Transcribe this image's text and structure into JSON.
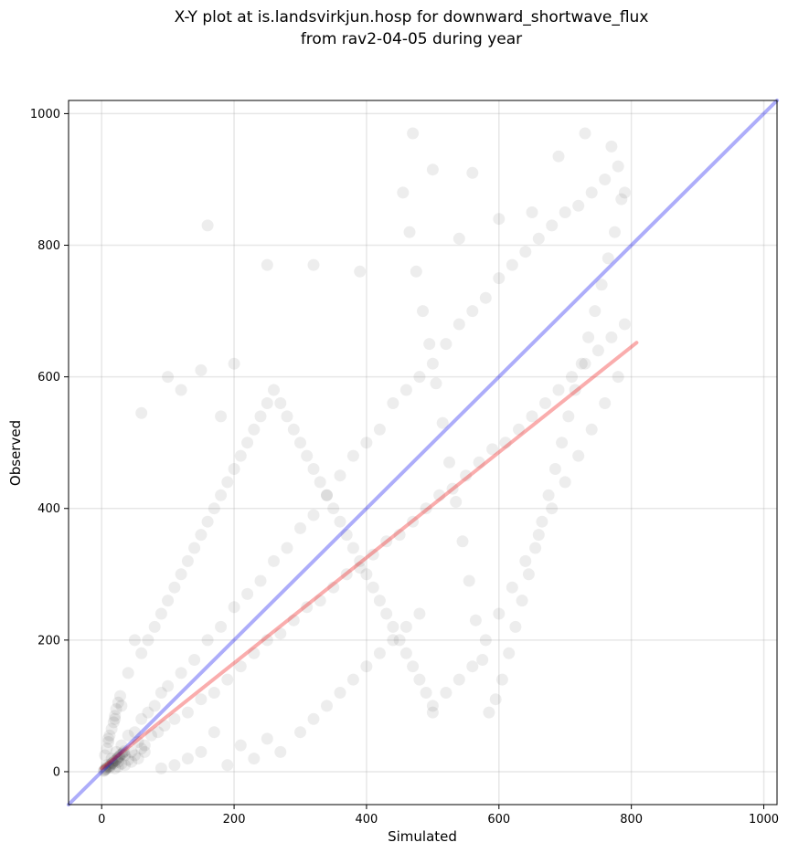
{
  "chart_data": {
    "type": "scatter",
    "title": "X-Y plot at is.landsvirkjun.hosp for downward_shortwave_flux",
    "subtitle": "from rav2-04-05 during year",
    "xlabel": "Simulated",
    "ylabel": "Observed",
    "xlim": [
      -50,
      1020
    ],
    "ylim": [
      -50,
      1020
    ],
    "x_ticks": [
      0,
      200,
      400,
      600,
      800,
      1000
    ],
    "y_ticks": [
      0,
      200,
      400,
      600,
      800,
      1000
    ],
    "grid": true,
    "legend": "none",
    "series": [
      {
        "kind": "points",
        "color": "#000000",
        "opacity": 0.07,
        "points": [
          [
            5,
            3
          ],
          [
            8,
            10
          ],
          [
            12,
            6
          ],
          [
            15,
            20
          ],
          [
            18,
            12
          ],
          [
            22,
            30
          ],
          [
            25,
            15
          ],
          [
            30,
            40
          ],
          [
            35,
            25
          ],
          [
            40,
            55
          ],
          [
            45,
            30
          ],
          [
            50,
            60
          ],
          [
            55,
            45
          ],
          [
            60,
            80
          ],
          [
            65,
            40
          ],
          [
            70,
            90
          ],
          [
            75,
            55
          ],
          [
            80,
            100
          ],
          [
            85,
            60
          ],
          [
            90,
            120
          ],
          [
            95,
            70
          ],
          [
            100,
            130
          ],
          [
            110,
            80
          ],
          [
            120,
            150
          ],
          [
            130,
            90
          ],
          [
            140,
            170
          ],
          [
            150,
            110
          ],
          [
            160,
            200
          ],
          [
            170,
            120
          ],
          [
            180,
            220
          ],
          [
            190,
            140
          ],
          [
            200,
            250
          ],
          [
            210,
            160
          ],
          [
            220,
            270
          ],
          [
            230,
            180
          ],
          [
            240,
            290
          ],
          [
            250,
            200
          ],
          [
            260,
            320
          ],
          [
            270,
            210
          ],
          [
            280,
            340
          ],
          [
            290,
            230
          ],
          [
            300,
            370
          ],
          [
            310,
            250
          ],
          [
            320,
            390
          ],
          [
            330,
            260
          ],
          [
            340,
            420
          ],
          [
            350,
            280
          ],
          [
            360,
            450
          ],
          [
            370,
            300
          ],
          [
            380,
            480
          ],
          [
            390,
            310
          ],
          [
            400,
            500
          ],
          [
            410,
            330
          ],
          [
            420,
            520
          ],
          [
            430,
            350
          ],
          [
            440,
            560
          ],
          [
            450,
            360
          ],
          [
            460,
            580
          ],
          [
            470,
            380
          ],
          [
            480,
            600
          ],
          [
            490,
            400
          ],
          [
            500,
            620
          ],
          [
            510,
            420
          ],
          [
            520,
            650
          ],
          [
            530,
            430
          ],
          [
            540,
            680
          ],
          [
            550,
            450
          ],
          [
            560,
            700
          ],
          [
            570,
            470
          ],
          [
            580,
            720
          ],
          [
            590,
            490
          ],
          [
            600,
            750
          ],
          [
            610,
            500
          ],
          [
            620,
            770
          ],
          [
            630,
            520
          ],
          [
            640,
            790
          ],
          [
            650,
            540
          ],
          [
            660,
            810
          ],
          [
            670,
            560
          ],
          [
            680,
            830
          ],
          [
            690,
            580
          ],
          [
            700,
            850
          ],
          [
            710,
            600
          ],
          [
            720,
            860
          ],
          [
            730,
            620
          ],
          [
            740,
            880
          ],
          [
            750,
            640
          ],
          [
            760,
            900
          ],
          [
            770,
            660
          ],
          [
            780,
            920
          ],
          [
            790,
            680
          ],
          [
            785,
            870
          ],
          [
            775,
            820
          ],
          [
            765,
            780
          ],
          [
            755,
            740
          ],
          [
            745,
            700
          ],
          [
            735,
            660
          ],
          [
            725,
            620
          ],
          [
            715,
            580
          ],
          [
            705,
            540
          ],
          [
            695,
            500
          ],
          [
            685,
            460
          ],
          [
            675,
            420
          ],
          [
            665,
            380
          ],
          [
            655,
            340
          ],
          [
            645,
            300
          ],
          [
            635,
            260
          ],
          [
            625,
            220
          ],
          [
            615,
            180
          ],
          [
            605,
            140
          ],
          [
            595,
            110
          ],
          [
            585,
            90
          ],
          [
            575,
            170
          ],
          [
            565,
            230
          ],
          [
            555,
            290
          ],
          [
            545,
            350
          ],
          [
            535,
            410
          ],
          [
            525,
            470
          ],
          [
            515,
            530
          ],
          [
            505,
            590
          ],
          [
            495,
            650
          ],
          [
            485,
            700
          ],
          [
            475,
            760
          ],
          [
            465,
            820
          ],
          [
            455,
            880
          ],
          [
            300,
            60
          ],
          [
            320,
            80
          ],
          [
            340,
            100
          ],
          [
            360,
            120
          ],
          [
            380,
            140
          ],
          [
            400,
            160
          ],
          [
            420,
            180
          ],
          [
            440,
            200
          ],
          [
            460,
            220
          ],
          [
            480,
            240
          ],
          [
            500,
            100
          ],
          [
            520,
            120
          ],
          [
            540,
            140
          ],
          [
            560,
            160
          ],
          [
            580,
            200
          ],
          [
            600,
            240
          ],
          [
            620,
            280
          ],
          [
            640,
            320
          ],
          [
            660,
            360
          ],
          [
            680,
            400
          ],
          [
            700,
            440
          ],
          [
            720,
            480
          ],
          [
            740,
            520
          ],
          [
            760,
            560
          ],
          [
            780,
            600
          ],
          [
            100,
            600
          ],
          [
            150,
            610
          ],
          [
            160,
            830
          ],
          [
            200,
            620
          ],
          [
            180,
            540
          ],
          [
            60,
            545
          ],
          [
            120,
            580
          ],
          [
            250,
            770
          ],
          [
            320,
            770
          ],
          [
            390,
            760
          ],
          [
            470,
            970
          ],
          [
            500,
            915
          ],
          [
            540,
            810
          ],
          [
            560,
            910
          ],
          [
            600,
            840
          ],
          [
            650,
            850
          ],
          [
            690,
            935
          ],
          [
            730,
            970
          ],
          [
            770,
            950
          ],
          [
            790,
            880
          ],
          [
            250,
            50
          ],
          [
            270,
            30
          ],
          [
            230,
            20
          ],
          [
            210,
            40
          ],
          [
            190,
            10
          ],
          [
            170,
            60
          ],
          [
            150,
            30
          ],
          [
            130,
            20
          ],
          [
            110,
            10
          ],
          [
            90,
            5
          ],
          [
            50,
            200
          ],
          [
            40,
            150
          ],
          [
            30,
            100
          ],
          [
            20,
            80
          ],
          [
            10,
            50
          ],
          [
            60,
            180
          ],
          [
            70,
            200
          ],
          [
            80,
            220
          ],
          [
            90,
            240
          ],
          [
            100,
            260
          ],
          [
            110,
            280
          ],
          [
            120,
            300
          ],
          [
            130,
            320
          ],
          [
            140,
            340
          ],
          [
            150,
            360
          ],
          [
            160,
            380
          ],
          [
            170,
            400
          ],
          [
            180,
            420
          ],
          [
            190,
            440
          ],
          [
            200,
            460
          ],
          [
            210,
            480
          ],
          [
            220,
            500
          ],
          [
            230,
            520
          ],
          [
            240,
            540
          ],
          [
            250,
            560
          ],
          [
            260,
            580
          ],
          [
            270,
            560
          ],
          [
            280,
            540
          ],
          [
            290,
            520
          ],
          [
            300,
            500
          ],
          [
            310,
            480
          ],
          [
            320,
            460
          ],
          [
            330,
            440
          ],
          [
            340,
            420
          ],
          [
            350,
            400
          ],
          [
            360,
            380
          ],
          [
            370,
            360
          ],
          [
            380,
            340
          ],
          [
            390,
            320
          ],
          [
            400,
            300
          ],
          [
            410,
            280
          ],
          [
            420,
            260
          ],
          [
            430,
            240
          ],
          [
            440,
            220
          ],
          [
            450,
            200
          ],
          [
            460,
            180
          ],
          [
            470,
            160
          ],
          [
            480,
            140
          ],
          [
            490,
            120
          ],
          [
            500,
            90
          ],
          [
            3,
            1
          ],
          [
            4,
            2
          ],
          [
            6,
            4
          ],
          [
            7,
            5
          ],
          [
            9,
            7
          ],
          [
            11,
            8
          ],
          [
            13,
            9
          ],
          [
            14,
            11
          ],
          [
            16,
            13
          ],
          [
            17,
            14
          ],
          [
            19,
            16
          ],
          [
            21,
            17
          ],
          [
            23,
            19
          ],
          [
            24,
            21
          ],
          [
            26,
            22
          ],
          [
            27,
            24
          ],
          [
            29,
            26
          ],
          [
            31,
            27
          ],
          [
            33,
            29
          ],
          [
            34,
            31
          ],
          [
            20,
            5
          ],
          [
            25,
            8
          ],
          [
            30,
            12
          ],
          [
            35,
            10
          ],
          [
            40,
            18
          ],
          [
            45,
            15
          ],
          [
            50,
            25
          ],
          [
            55,
            20
          ],
          [
            60,
            35
          ],
          [
            65,
            30
          ],
          [
            5,
            25
          ],
          [
            8,
            35
          ],
          [
            10,
            45
          ],
          [
            12,
            55
          ],
          [
            15,
            65
          ],
          [
            18,
            75
          ],
          [
            20,
            85
          ],
          [
            22,
            95
          ],
          [
            25,
            105
          ],
          [
            28,
            115
          ]
        ]
      },
      {
        "kind": "line",
        "name": "",
        "color": "#0000ee",
        "opacity": 0.32,
        "x": [
          -50,
          1020
        ],
        "y": [
          -50,
          1020
        ]
      },
      {
        "kind": "line",
        "name": "",
        "color": "#ee0000",
        "opacity": 0.32,
        "x": [
          0,
          808
        ],
        "y": [
          5,
          652
        ]
      }
    ]
  }
}
